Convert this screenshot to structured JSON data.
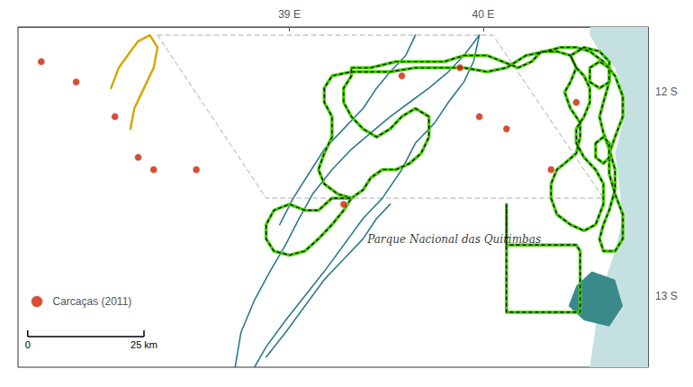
{
  "chart_data": {
    "type": "map",
    "xlim": [
      37.6,
      40.85
    ],
    "ylim": [
      -13.35,
      -11.68
    ],
    "xticks": [
      {
        "value": 39.0,
        "label": "39 E"
      },
      {
        "value": 40.0,
        "label": "40 E"
      }
    ],
    "yticks": [
      {
        "value": -12.0,
        "label": "12 S"
      },
      {
        "value": -13.0,
        "label": "13 S"
      }
    ],
    "grid": false,
    "legend": "lower left",
    "series": [
      {
        "type": "area",
        "color": "#c5e0e0",
        "values": [
          [
            40.55,
            -11.68
          ],
          [
            40.8,
            -11.68
          ],
          [
            40.85,
            -11.68
          ],
          [
            40.85,
            -13.35
          ],
          [
            40.55,
            -13.35
          ],
          [
            40.58,
            -13.15
          ],
          [
            40.62,
            -12.95
          ],
          [
            40.68,
            -12.78
          ],
          [
            40.72,
            -12.62
          ],
          [
            40.7,
            -12.45
          ],
          [
            40.68,
            -12.3
          ],
          [
            40.72,
            -12.15
          ],
          [
            40.72,
            -12.0
          ],
          [
            40.68,
            -11.88
          ],
          [
            40.6,
            -11.8
          ],
          [
            40.55,
            -11.72
          ],
          [
            40.55,
            -11.68
          ]
        ]
      },
      {
        "type": "area",
        "color": "#3a8a8a",
        "values": [
          [
            40.48,
            -12.95
          ],
          [
            40.56,
            -12.88
          ],
          [
            40.68,
            -12.92
          ],
          [
            40.72,
            -13.05
          ],
          [
            40.65,
            -13.15
          ],
          [
            40.52,
            -13.12
          ],
          [
            40.44,
            -13.05
          ],
          [
            40.48,
            -12.95
          ]
        ]
      },
      {
        "type": "line",
        "line_style": "dashed",
        "color": "#aaaaaa",
        "values": [
          [
            38.32,
            -11.72
          ],
          [
            40.05,
            -11.72
          ],
          [
            40.62,
            -12.52
          ],
          [
            38.88,
            -12.52
          ],
          [
            38.32,
            -11.72
          ]
        ]
      },
      {
        "type": "line",
        "color": "#2e7a8a",
        "values": [
          [
            39.98,
            -11.72
          ],
          [
            39.9,
            -11.82
          ],
          [
            39.82,
            -11.9
          ],
          [
            39.72,
            -11.98
          ],
          [
            39.62,
            -12.05
          ],
          [
            39.52,
            -12.12
          ],
          [
            39.42,
            -12.2
          ],
          [
            39.32,
            -12.28
          ],
          [
            39.22,
            -12.38
          ],
          [
            39.12,
            -12.5
          ],
          [
            39.05,
            -12.62
          ],
          [
            38.98,
            -12.75
          ],
          [
            38.9,
            -12.88
          ],
          [
            38.82,
            -13.02
          ],
          [
            38.75,
            -13.18
          ],
          [
            38.72,
            -13.35
          ]
        ]
      },
      {
        "type": "line",
        "color": "#2e7a8a",
        "values": [
          [
            39.98,
            -11.72
          ],
          [
            39.95,
            -11.85
          ],
          [
            39.9,
            -11.95
          ],
          [
            39.82,
            -12.05
          ],
          [
            39.75,
            -12.15
          ],
          [
            39.65,
            -12.25
          ],
          [
            39.58,
            -12.38
          ],
          [
            39.48,
            -12.52
          ],
          [
            39.38,
            -12.62
          ],
          [
            39.28,
            -12.75
          ],
          [
            39.18,
            -12.88
          ],
          [
            39.08,
            -13.0
          ],
          [
            38.98,
            -13.12
          ],
          [
            38.88,
            -13.25
          ],
          [
            38.82,
            -13.35
          ]
        ]
      },
      {
        "type": "line",
        "color": "#2e7a8a",
        "values": [
          [
            39.65,
            -11.72
          ],
          [
            39.6,
            -11.82
          ],
          [
            39.52,
            -11.9
          ],
          [
            39.45,
            -11.98
          ],
          [
            39.38,
            -12.08
          ],
          [
            39.28,
            -12.18
          ],
          [
            39.18,
            -12.28
          ],
          [
            39.1,
            -12.4
          ],
          [
            39.02,
            -12.52
          ],
          [
            38.95,
            -12.65
          ]
        ]
      },
      {
        "type": "line",
        "color": "#2e7a8a",
        "values": [
          [
            39.52,
            -12.55
          ],
          [
            39.45,
            -12.62
          ],
          [
            39.38,
            -12.72
          ],
          [
            39.28,
            -12.82
          ],
          [
            39.18,
            -12.92
          ],
          [
            39.08,
            -13.05
          ],
          [
            38.98,
            -13.18
          ],
          [
            38.88,
            -13.3
          ]
        ]
      },
      {
        "type": "line",
        "color": "#d4a800",
        "values": [
          [
            38.08,
            -11.98
          ],
          [
            38.12,
            -11.88
          ],
          [
            38.18,
            -11.8
          ],
          [
            38.22,
            -11.75
          ],
          [
            38.28,
            -11.72
          ],
          [
            38.32,
            -11.78
          ],
          [
            38.3,
            -11.88
          ],
          [
            38.25,
            -11.98
          ],
          [
            38.2,
            -12.08
          ],
          [
            38.18,
            -12.18
          ]
        ]
      },
      {
        "type": "boundary",
        "color": "#44cc00",
        "values": [
          [
            39.32,
            -11.88
          ],
          [
            39.42,
            -11.88
          ],
          [
            39.55,
            -11.85
          ],
          [
            39.68,
            -11.85
          ],
          [
            39.8,
            -11.85
          ],
          [
            39.9,
            -11.82
          ],
          [
            40.02,
            -11.82
          ],
          [
            40.1,
            -11.85
          ],
          [
            40.18,
            -11.88
          ],
          [
            40.25,
            -11.85
          ],
          [
            40.3,
            -11.8
          ],
          [
            40.38,
            -11.8
          ],
          [
            40.45,
            -11.82
          ],
          [
            40.48,
            -11.88
          ],
          [
            40.45,
            -11.95
          ],
          [
            40.42,
            -12.0
          ],
          [
            40.45,
            -12.08
          ],
          [
            40.5,
            -12.15
          ],
          [
            40.5,
            -12.22
          ],
          [
            40.48,
            -12.3
          ],
          [
            40.42,
            -12.35
          ],
          [
            40.38,
            -12.38
          ],
          [
            40.35,
            -12.45
          ],
          [
            40.35,
            -12.52
          ],
          [
            40.38,
            -12.6
          ],
          [
            40.45,
            -12.65
          ],
          [
            40.52,
            -12.68
          ],
          [
            40.58,
            -12.65
          ],
          [
            40.62,
            -12.55
          ],
          [
            40.62,
            -12.45
          ],
          [
            40.58,
            -12.38
          ],
          [
            40.52,
            -12.32
          ],
          [
            40.48,
            -12.25
          ],
          [
            40.48,
            -12.18
          ],
          [
            40.52,
            -12.12
          ],
          [
            40.55,
            -12.05
          ],
          [
            40.55,
            -11.98
          ],
          [
            40.52,
            -11.92
          ],
          [
            40.48,
            -11.88
          ],
          [
            40.45,
            -11.82
          ],
          [
            40.52,
            -11.78
          ],
          [
            40.6,
            -11.8
          ],
          [
            40.65,
            -11.85
          ],
          [
            40.65,
            -11.95
          ],
          [
            40.62,
            -12.05
          ],
          [
            40.6,
            -12.12
          ],
          [
            40.62,
            -12.2
          ],
          [
            40.65,
            -12.28
          ],
          [
            40.68,
            -12.38
          ],
          [
            40.68,
            -12.48
          ],
          [
            40.65,
            -12.58
          ],
          [
            40.62,
            -12.65
          ],
          [
            40.6,
            -12.72
          ],
          [
            40.62,
            -12.78
          ],
          [
            40.68,
            -12.78
          ],
          [
            40.72,
            -12.72
          ],
          [
            40.72,
            -12.6
          ],
          [
            40.68,
            -12.5
          ],
          [
            40.65,
            -12.4
          ],
          [
            40.65,
            -12.3
          ],
          [
            40.68,
            -12.22
          ],
          [
            40.72,
            -12.12
          ],
          [
            40.72,
            -12.02
          ],
          [
            40.68,
            -11.92
          ],
          [
            40.62,
            -11.85
          ],
          [
            40.55,
            -11.8
          ],
          [
            40.48,
            -11.78
          ],
          [
            40.4,
            -11.78
          ],
          [
            40.32,
            -11.8
          ],
          [
            40.22,
            -11.82
          ],
          [
            40.12,
            -11.88
          ],
          [
            40.02,
            -11.9
          ],
          [
            39.9,
            -11.88
          ],
          [
            39.78,
            -11.88
          ],
          [
            39.65,
            -11.88
          ],
          [
            39.52,
            -11.9
          ],
          [
            39.42,
            -11.9
          ],
          [
            39.32,
            -11.9
          ],
          [
            39.22,
            -11.92
          ],
          [
            39.18,
            -11.98
          ],
          [
            39.18,
            -12.05
          ],
          [
            39.22,
            -12.12
          ],
          [
            39.22,
            -12.22
          ],
          [
            39.18,
            -12.3
          ],
          [
            39.15,
            -12.38
          ],
          [
            39.18,
            -12.45
          ],
          [
            39.25,
            -12.5
          ],
          [
            39.32,
            -12.52
          ],
          [
            39.38,
            -12.48
          ],
          [
            39.42,
            -12.42
          ],
          [
            39.48,
            -12.38
          ],
          [
            39.55,
            -12.38
          ],
          [
            39.62,
            -12.35
          ],
          [
            39.68,
            -12.3
          ],
          [
            39.72,
            -12.22
          ],
          [
            39.72,
            -12.12
          ],
          [
            39.65,
            -12.08
          ],
          [
            39.58,
            -12.12
          ],
          [
            39.52,
            -12.18
          ],
          [
            39.45,
            -12.22
          ],
          [
            39.38,
            -12.18
          ],
          [
            39.32,
            -12.12
          ],
          [
            39.28,
            -12.05
          ],
          [
            39.28,
            -11.98
          ],
          [
            39.32,
            -11.92
          ],
          [
            39.32,
            -11.88
          ]
        ]
      },
      {
        "type": "boundary",
        "color": "#44cc00",
        "values": [
          [
            39.22,
            -12.52
          ],
          [
            39.15,
            -12.58
          ],
          [
            39.08,
            -12.58
          ],
          [
            39.0,
            -12.55
          ],
          [
            38.92,
            -12.58
          ],
          [
            38.88,
            -12.65
          ],
          [
            38.88,
            -12.72
          ],
          [
            38.92,
            -12.78
          ],
          [
            39.0,
            -12.8
          ],
          [
            39.08,
            -12.78
          ],
          [
            39.15,
            -12.72
          ],
          [
            39.22,
            -12.65
          ],
          [
            39.28,
            -12.58
          ],
          [
            39.32,
            -12.52
          ],
          [
            39.22,
            -12.52
          ]
        ]
      },
      {
        "type": "boundary",
        "color": "#44cc00",
        "values": [
          [
            40.12,
            -12.55
          ],
          [
            40.12,
            -12.65
          ],
          [
            40.12,
            -12.75
          ],
          [
            40.22,
            -12.75
          ],
          [
            40.48,
            -12.75
          ],
          [
            40.5,
            -12.78
          ],
          [
            40.5,
            -12.88
          ],
          [
            40.5,
            -12.98
          ],
          [
            40.5,
            -13.08
          ],
          [
            40.42,
            -13.08
          ],
          [
            40.32,
            -13.08
          ],
          [
            40.22,
            -13.08
          ],
          [
            40.12,
            -13.08
          ],
          [
            40.12,
            -12.95
          ],
          [
            40.12,
            -12.82
          ],
          [
            40.12,
            -12.68
          ],
          [
            40.12,
            -12.55
          ]
        ]
      },
      {
        "type": "boundary",
        "color": "#44cc00",
        "values": [
          [
            40.55,
            -11.88
          ],
          [
            40.6,
            -11.85
          ],
          [
            40.65,
            -11.88
          ],
          [
            40.65,
            -11.95
          ],
          [
            40.6,
            -11.98
          ],
          [
            40.55,
            -11.95
          ],
          [
            40.55,
            -11.88
          ]
        ]
      },
      {
        "type": "boundary",
        "color": "#44cc00",
        "values": [
          [
            40.58,
            -12.25
          ],
          [
            40.62,
            -12.22
          ],
          [
            40.65,
            -12.25
          ],
          [
            40.65,
            -12.32
          ],
          [
            40.62,
            -12.35
          ],
          [
            40.58,
            -12.32
          ],
          [
            40.58,
            -12.25
          ]
        ]
      },
      {
        "type": "scatter",
        "name": "Carcaças (2011)",
        "color": "#cc2200",
        "marker": "circle",
        "values": [
          [
            37.72,
            -11.85
          ],
          [
            37.9,
            -11.95
          ],
          [
            38.1,
            -12.12
          ],
          [
            38.22,
            -12.32
          ],
          [
            38.3,
            -12.38
          ],
          [
            38.52,
            -12.38
          ],
          [
            39.28,
            -12.55
          ],
          [
            39.58,
            -11.92
          ],
          [
            39.88,
            -11.88
          ],
          [
            39.98,
            -12.12
          ],
          [
            40.12,
            -12.18
          ],
          [
            40.35,
            -12.38
          ],
          [
            40.48,
            -12.05
          ]
        ]
      }
    ],
    "annotations": [
      {
        "text": "Parque Nacional das Quirimbas",
        "x": 39.85,
        "y": -12.75
      }
    ],
    "scale_bar": {
      "x": [
        37.65,
        38.25
      ],
      "y": -13.2,
      "labels": [
        "0",
        "25 km"
      ]
    }
  }
}
